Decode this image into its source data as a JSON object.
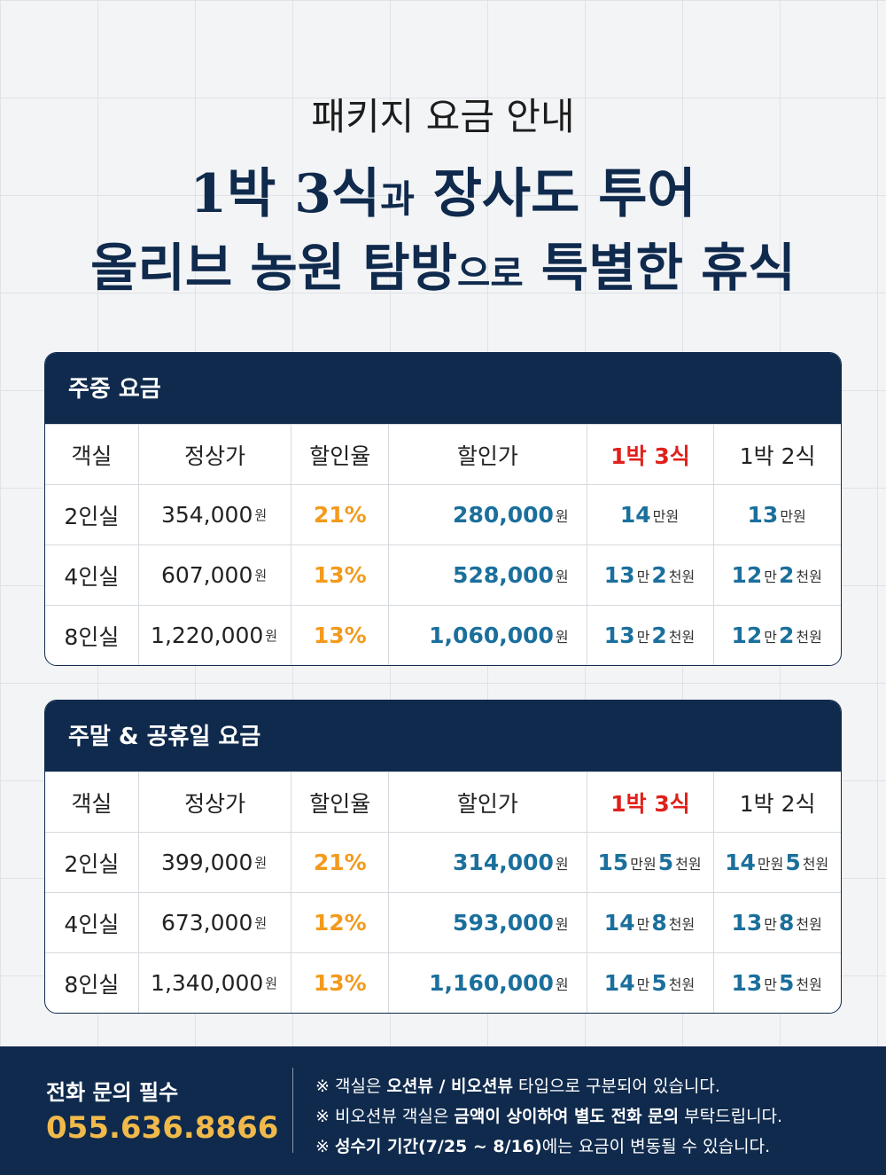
{
  "header": {
    "subtitle": "패키지 요금 안내",
    "line1": [
      "1박 3식",
      "과",
      " 장사도 투어"
    ],
    "line2": [
      "올리브 농원 탐방",
      "으로",
      " 특별한 휴식"
    ]
  },
  "tables": [
    {
      "title": "주중 요금",
      "columns": [
        "객실",
        "정상가",
        "할인율",
        "할인가",
        "1박 3식",
        "1박 2식"
      ],
      "rows": [
        [
          "2인실",
          [
            "354,000",
            "원"
          ],
          "21%",
          [
            "280,000",
            "원"
          ],
          [
            "14",
            "만원"
          ],
          [
            "13",
            "만원"
          ]
        ],
        [
          "4인실",
          [
            "607,000",
            "원"
          ],
          "13%",
          [
            "528,000",
            "원"
          ],
          [
            "13",
            "만",
            "2",
            "천원"
          ],
          [
            "12",
            "만",
            "2",
            "천원"
          ]
        ],
        [
          "8인실",
          [
            "1,220,000",
            "원"
          ],
          "13%",
          [
            "1,060,000",
            "원"
          ],
          [
            "13",
            "만",
            "2",
            "천원"
          ],
          [
            "12",
            "만",
            "2",
            "천원"
          ]
        ]
      ]
    },
    {
      "title": "주말 & 공휴일 요금",
      "columns": [
        "객실",
        "정상가",
        "할인율",
        "할인가",
        "1박 3식",
        "1박 2식"
      ],
      "rows": [
        [
          "2인실",
          [
            "399,000",
            "원"
          ],
          "21%",
          [
            "314,000",
            "원"
          ],
          [
            "15",
            "만원",
            "5",
            "천원"
          ],
          [
            "14",
            "만원",
            "5",
            "천원"
          ]
        ],
        [
          "4인실",
          [
            "673,000",
            "원"
          ],
          "12%",
          [
            "593,000",
            "원"
          ],
          [
            "14",
            "만",
            "8",
            "천원"
          ],
          [
            "13",
            "만",
            "8",
            "천원"
          ]
        ],
        [
          "8인실",
          [
            "1,340,000",
            "원"
          ],
          "13%",
          [
            "1,160,000",
            "원"
          ],
          [
            "14",
            "만",
            "5",
            "천원"
          ],
          [
            "13",
            "만",
            "5",
            "천원"
          ]
        ]
      ]
    }
  ],
  "footer": {
    "label": "전화 문의 필수",
    "phone": "055.636.8866",
    "notes": [
      [
        "※ 객실은 ",
        "오션뷰 / 비오션뷰",
        " 타입으로 구분되어 있습니다."
      ],
      [
        "※ 비오션뷰 객실은 ",
        "금액이 상이하여 별도 전화 문의",
        " 부탁드립니다."
      ],
      [
        "※ ",
        "성수기 기간(7/25 ~ 8/16)",
        "에는 요금이 변동될 수 있습니다."
      ]
    ]
  }
}
